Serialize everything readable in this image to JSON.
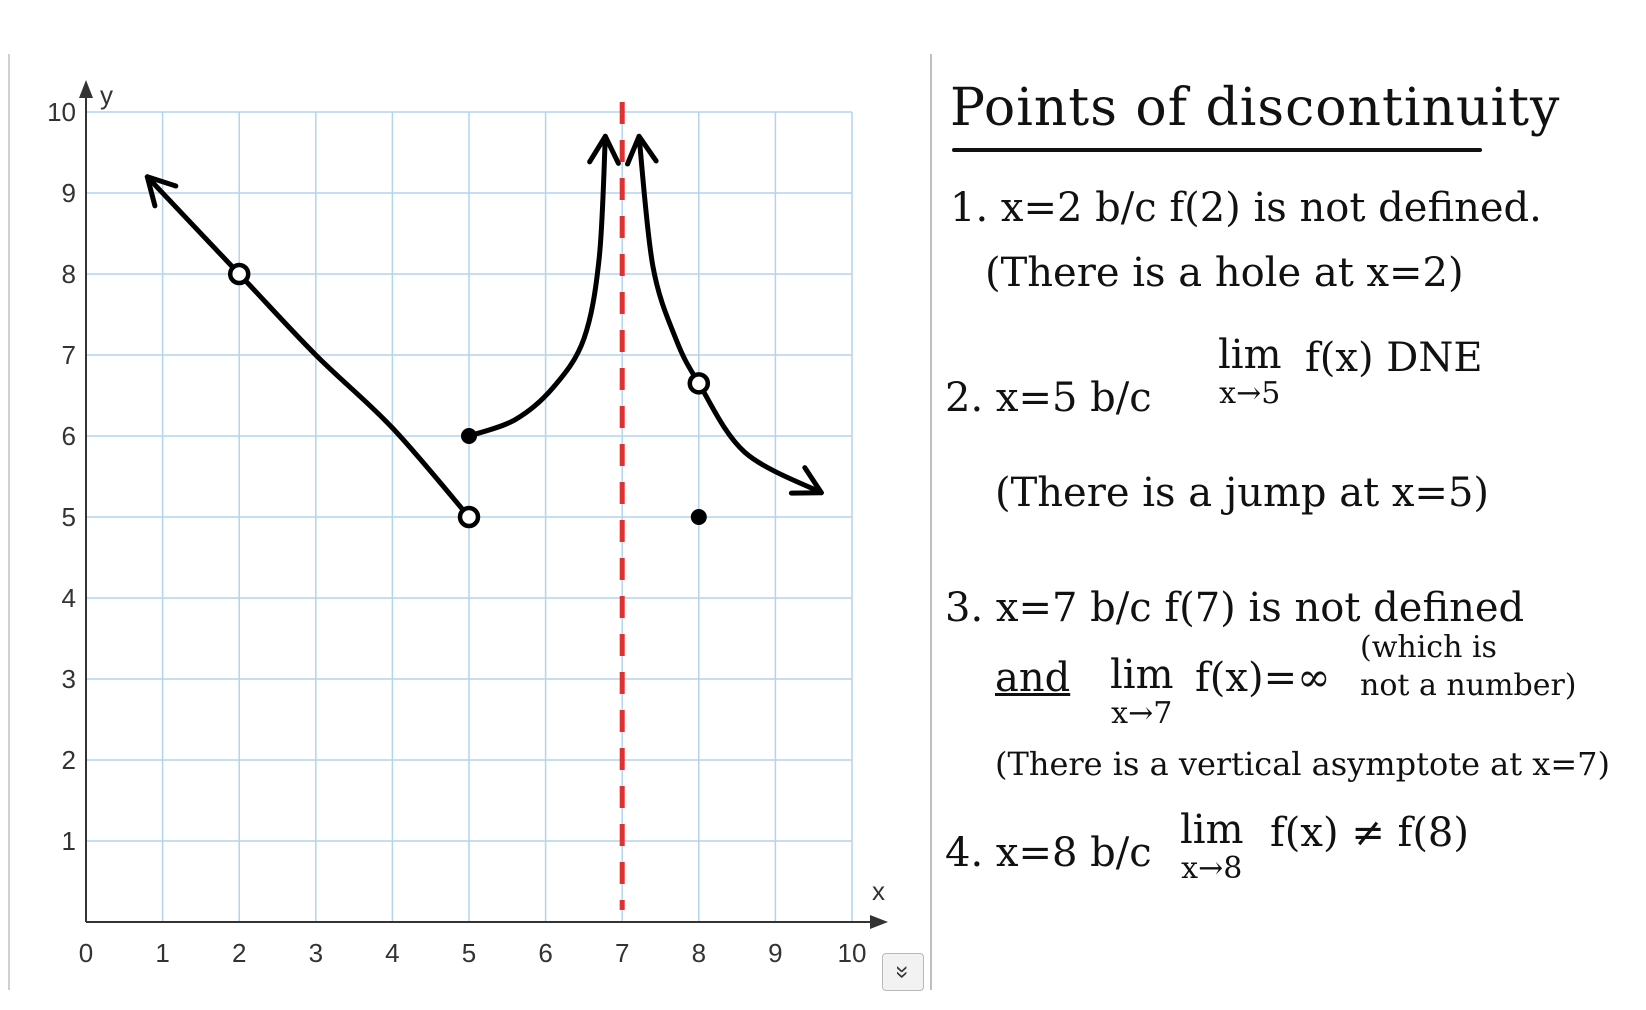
{
  "chart_data": {
    "type": "line",
    "xlabel": "x",
    "ylabel": "y",
    "xlim": [
      0,
      10
    ],
    "ylim": [
      0,
      10
    ],
    "x_ticks": [
      "0",
      "1",
      "2",
      "3",
      "4",
      "5",
      "6",
      "7",
      "8",
      "9",
      "10"
    ],
    "y_ticks": [
      "1",
      "2",
      "3",
      "4",
      "5",
      "6",
      "7",
      "8",
      "9",
      "10"
    ],
    "grid": true,
    "grid_color": "#b3d4ee",
    "curve_color": "#000000",
    "asymptote_color": "#e03030",
    "vertical_asymptote_x": 7,
    "pieces": [
      {
        "points": [
          [
            0.8,
            9.2
          ],
          [
            2,
            8
          ],
          [
            3,
            7
          ],
          [
            4,
            6.1
          ],
          [
            5,
            5
          ]
        ],
        "arrow_start": true,
        "arrow_end": false
      },
      {
        "points": [
          [
            5,
            6
          ],
          [
            5.6,
            6.2
          ],
          [
            6.1,
            6.6
          ],
          [
            6.5,
            7.2
          ],
          [
            6.7,
            8.2
          ],
          [
            6.78,
            9.7
          ]
        ],
        "arrow_start": false,
        "arrow_end": true
      },
      {
        "points": [
          [
            7.22,
            9.7
          ],
          [
            7.4,
            8.1
          ],
          [
            7.7,
            7.2
          ],
          [
            8,
            6.65
          ],
          [
            8.6,
            5.8
          ],
          [
            9.6,
            5.3
          ]
        ],
        "arrow_start": true,
        "arrow_end": true
      }
    ],
    "open_points": [
      [
        2,
        8
      ],
      [
        5,
        5
      ],
      [
        8,
        6.65
      ]
    ],
    "closed_points": [
      [
        5,
        6
      ],
      [
        8,
        5
      ]
    ]
  },
  "notes": {
    "title": "Points of discontinuity",
    "item1_line1": "1. x=2 b/c f(2) is not defined.",
    "item1_line2": "(There is a hole at x=2)",
    "item2_main": "2. x=5 b/c",
    "item2_lim": "lim",
    "item2_sub": "x→5",
    "item2_rest": "f(x) DNE",
    "item2_line2": "(There is a jump at x=5)",
    "item3_line1": "3. x=7 b/c f(7) is not defined",
    "item3_and": "and",
    "item3_lim": "lim",
    "item3_sub": "x→7",
    "item3_rest": "f(x)=∞",
    "item3_paren_top": "(which is",
    "item3_paren_bottom": "not a number)",
    "item3_line3": "(There is a vertical asymptote at x=7)",
    "item4_main": "4. x=8 b/c",
    "item4_lim": "lim",
    "item4_sub": "x→8",
    "item4_rest": "f(x) ≠ f(8)"
  },
  "controls": {
    "expand_icon": "double-chevron-down-icon",
    "expand_glyph": "»"
  }
}
